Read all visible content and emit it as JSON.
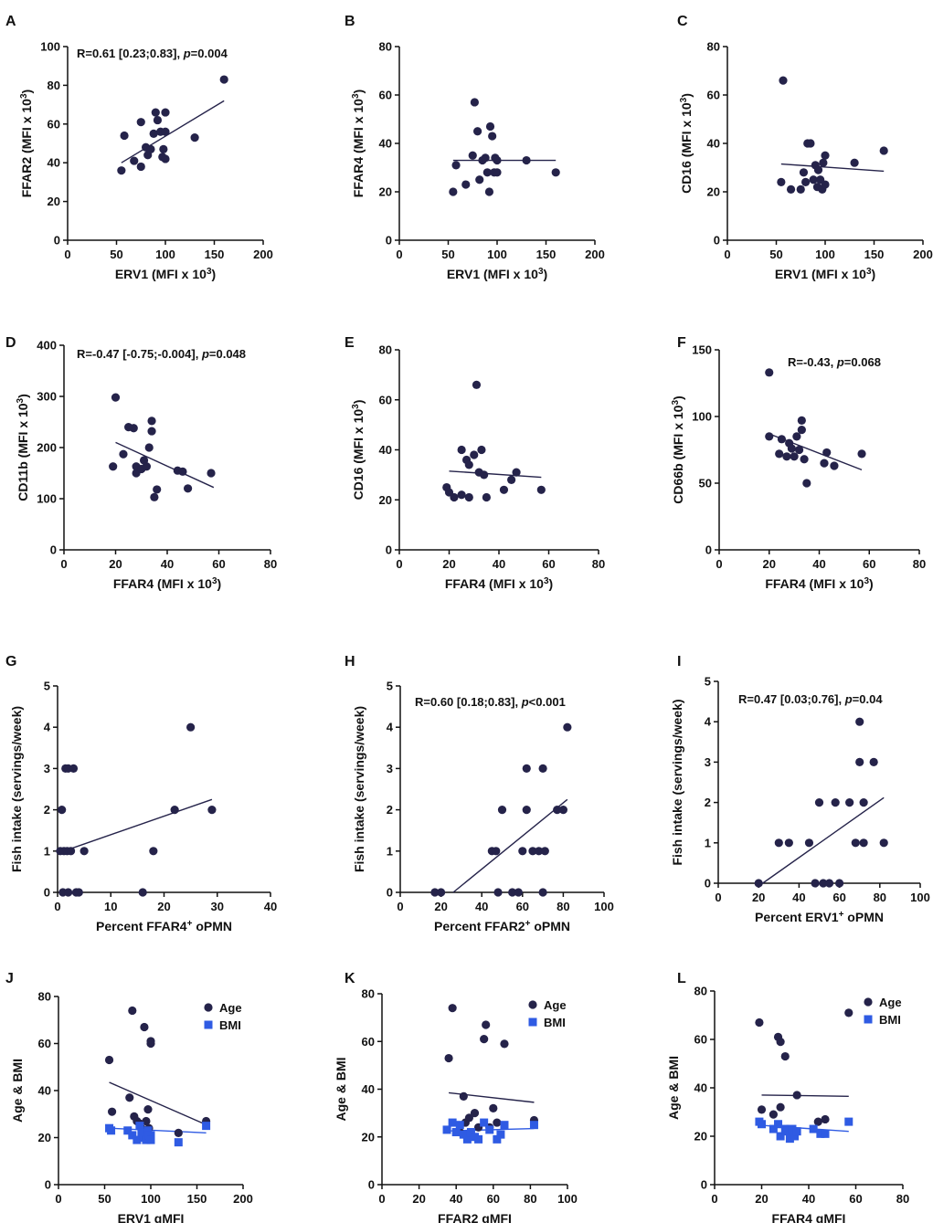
{
  "colors": {
    "navy": "#25234a",
    "blue": "#2f5be3",
    "axis": "#111111"
  },
  "chart_data": [
    {
      "panel": "A",
      "type": "scatter",
      "title": "",
      "xlabel_main": "ERV1 (MFI x 10",
      "xlabel_sup": "3",
      "xlabel_end": ")",
      "ylabel_main": "FFAR2 (MFI x 10",
      "ylabel_sup": "3",
      "ylabel_end": ")",
      "xlim": [
        0,
        200
      ],
      "xticks": [
        0,
        50,
        100,
        150,
        200
      ],
      "ylim": [
        0,
        100
      ],
      "yticks": [
        0,
        20,
        40,
        60,
        80,
        100
      ],
      "annotation": {
        "pre": "R=0.61 [0.23;0.83], ",
        "p": "p",
        "post": "=0.004"
      },
      "series": [
        {
          "name": "",
          "x": [
            55,
            58,
            68,
            75,
            75,
            80,
            82,
            85,
            88,
            90,
            92,
            95,
            97,
            98,
            100,
            100,
            100,
            130,
            160
          ],
          "y": [
            36,
            54,
            41,
            38,
            61,
            48,
            44,
            47,
            55,
            66,
            62,
            56,
            43,
            47,
            42,
            56,
            66,
            53,
            83
          ]
        }
      ],
      "fit": {
        "x": [
          55,
          160
        ],
        "y": [
          40,
          72
        ]
      }
    },
    {
      "panel": "B",
      "type": "scatter",
      "title": "",
      "xlabel_main": "ERV1 (MFI x 10",
      "xlabel_sup": "3",
      "xlabel_end": ")",
      "ylabel_main": "FFAR4 (MFI x 10",
      "ylabel_sup": "3",
      "ylabel_end": ")",
      "xlim": [
        0,
        200
      ],
      "xticks": [
        0,
        50,
        100,
        150,
        200
      ],
      "ylim": [
        0,
        80
      ],
      "yticks": [
        0,
        20,
        40,
        60,
        80
      ],
      "annotation": null,
      "series": [
        {
          "name": "",
          "x": [
            55,
            58,
            68,
            75,
            77,
            80,
            82,
            85,
            88,
            90,
            92,
            93,
            95,
            97,
            98,
            100,
            100,
            130,
            160
          ],
          "y": [
            20,
            31,
            23,
            35,
            57,
            45,
            25,
            33,
            34,
            28,
            20,
            47,
            43,
            28,
            34,
            33,
            28,
            33,
            28
          ]
        }
      ],
      "fit": {
        "x": [
          55,
          160
        ],
        "y": [
          33,
          33
        ]
      }
    },
    {
      "panel": "C",
      "type": "scatter",
      "title": "",
      "xlabel_main": "ERV1 (MFI x 10",
      "xlabel_sup": "3",
      "xlabel_end": ")",
      "ylabel_main": "CD16 (MFI x 10",
      "ylabel_sup": "3",
      "ylabel_end": ")",
      "xlim": [
        0,
        200
      ],
      "xticks": [
        0,
        50,
        100,
        150,
        200
      ],
      "ylim": [
        0,
        80
      ],
      "yticks": [
        0,
        20,
        40,
        60,
        80
      ],
      "annotation": null,
      "series": [
        {
          "name": "",
          "x": [
            55,
            57,
            65,
            75,
            78,
            80,
            82,
            85,
            88,
            90,
            92,
            93,
            95,
            97,
            98,
            100,
            100,
            130,
            160
          ],
          "y": [
            24,
            66,
            21,
            21,
            28,
            24,
            40,
            40,
            25,
            31,
            22,
            29,
            25,
            21,
            32,
            35,
            23,
            32,
            37
          ]
        }
      ],
      "fit": {
        "x": [
          55,
          160
        ],
        "y": [
          31.5,
          28.5
        ]
      }
    },
    {
      "panel": "D",
      "type": "scatter",
      "title": "",
      "xlabel_main": "FFAR4 (MFI x 10",
      "xlabel_sup": "3",
      "xlabel_end": ")",
      "ylabel_main": "CD11b (MFI x 10",
      "ylabel_sup": "3",
      "ylabel_end": ")",
      "xlim": [
        0,
        80
      ],
      "xticks": [
        0,
        20,
        40,
        60,
        80
      ],
      "ylim": [
        0,
        400
      ],
      "yticks": [
        0,
        100,
        200,
        300,
        400
      ],
      "annotation": {
        "pre": "R=-0.47 [-0.75;-0.004], ",
        "p": "p",
        "post": "=0.048"
      },
      "series": [
        {
          "name": "",
          "x": [
            19,
            20,
            23,
            25,
            27,
            28,
            28,
            30,
            31,
            32,
            33,
            34,
            34,
            35,
            36,
            44,
            46,
            48,
            57
          ],
          "y": [
            163,
            298,
            187,
            240,
            238,
            163,
            150,
            158,
            175,
            163,
            200,
            252,
            232,
            103,
            118,
            155,
            153,
            120,
            150
          ]
        }
      ],
      "fit": {
        "x": [
          20,
          58
        ],
        "y": [
          210,
          122
        ]
      }
    },
    {
      "panel": "E",
      "type": "scatter",
      "title": "",
      "xlabel_main": "FFAR4 (MFI x 10",
      "xlabel_sup": "3",
      "xlabel_end": ")",
      "ylabel_main": "CD16 (MFI x 10",
      "ylabel_sup": "3",
      "ylabel_end": ")",
      "xlim": [
        0,
        80
      ],
      "xticks": [
        0,
        20,
        40,
        60,
        80
      ],
      "ylim": [
        0,
        80
      ],
      "yticks": [
        0,
        20,
        40,
        60,
        80
      ],
      "annotation": null,
      "series": [
        {
          "name": "",
          "x": [
            19,
            20,
            22,
            25,
            25,
            27,
            28,
            28,
            30,
            31,
            32,
            33,
            34,
            35,
            42,
            45,
            47,
            57
          ],
          "y": [
            25,
            23,
            21,
            40,
            22,
            36,
            34,
            21,
            38,
            66,
            31,
            40,
            30,
            21,
            24,
            28,
            31,
            24
          ]
        }
      ],
      "fit": {
        "x": [
          20,
          57
        ],
        "y": [
          31.5,
          29
        ]
      }
    },
    {
      "panel": "F",
      "type": "scatter",
      "title": "",
      "xlabel_main": "FFAR4 (MFI x 10",
      "xlabel_sup": "3",
      "xlabel_end": ")",
      "ylabel_main": "CD66b (MFI x 10",
      "ylabel_sup": "3",
      "ylabel_end": ")",
      "xlim": [
        0,
        80
      ],
      "xticks": [
        0,
        20,
        40,
        60,
        80
      ],
      "ylim": [
        0,
        150
      ],
      "yticks": [
        0,
        50,
        100,
        150
      ],
      "annotation": {
        "pre": "R=-0.43, ",
        "p": "p",
        "post": "=0.068"
      },
      "series": [
        {
          "name": "",
          "x": [
            20,
            20,
            24,
            25,
            27,
            28,
            29,
            30,
            31,
            32,
            33,
            33,
            34,
            35,
            42,
            43,
            46,
            57
          ],
          "y": [
            133,
            85,
            72,
            83,
            70,
            80,
            76,
            70,
            85,
            75,
            97,
            90,
            68,
            50,
            65,
            73,
            63,
            72
          ]
        }
      ],
      "fit": {
        "x": [
          20,
          57
        ],
        "y": [
          87,
          60
        ]
      }
    },
    {
      "panel": "G",
      "type": "scatter",
      "title": "",
      "xlabel_main": "Percent FFAR4",
      "xlabel_sup": "+",
      "xlabel_end": " oPMN",
      "ylabel_main": "Fish intake (servings/week)",
      "ylabel_sup": "",
      "ylabel_end": "",
      "xlim": [
        0,
        40
      ],
      "xticks": [
        0,
        10,
        20,
        30,
        40
      ],
      "ylim": [
        0,
        5
      ],
      "yticks": [
        0,
        1,
        2,
        3,
        4,
        5
      ],
      "annotation": null,
      "series": [
        {
          "name": "",
          "x": [
            0.5,
            0.8,
            1,
            1.2,
            1.5,
            1.8,
            2,
            2,
            2.5,
            3,
            3.5,
            4,
            5,
            16,
            18,
            22,
            25,
            29
          ],
          "y": [
            1,
            2,
            0,
            1,
            3,
            1,
            3,
            0,
            1,
            3,
            0,
            0,
            1,
            0,
            1,
            2,
            4,
            2
          ]
        }
      ],
      "fit": {
        "x": [
          0.5,
          29
        ],
        "y": [
          0.97,
          2.25
        ]
      }
    },
    {
      "panel": "H",
      "type": "scatter",
      "title": "",
      "xlabel_main": "Percent FFAR2",
      "xlabel_sup": "+",
      "xlabel_end": " oPMN",
      "ylabel_main": "Fish intake (servings/week)",
      "ylabel_sup": "",
      "ylabel_end": "",
      "xlim": [
        0,
        100
      ],
      "xticks": [
        0,
        20,
        40,
        60,
        80,
        100
      ],
      "ylim": [
        0,
        5
      ],
      "yticks": [
        0,
        1,
        2,
        3,
        4,
        5
      ],
      "annotation": {
        "pre": "R=0.60 [0.18;0.83], ",
        "p": "p",
        "post": "<0.001"
      },
      "series": [
        {
          "name": "",
          "x": [
            17,
            20,
            45,
            47,
            48,
            50,
            55,
            58,
            60,
            62,
            62,
            65,
            68,
            70,
            70,
            71,
            77,
            80,
            82
          ],
          "y": [
            0,
            0,
            1,
            1,
            0,
            2,
            0,
            0,
            1,
            3,
            2,
            1,
            1,
            0,
            3,
            1,
            2,
            2,
            4
          ]
        }
      ],
      "fit": {
        "x": [
          26,
          82
        ],
        "y": [
          0,
          2.25
        ]
      }
    },
    {
      "panel": "I",
      "type": "scatter",
      "title": "",
      "xlabel_main": "Percent ERV1",
      "xlabel_sup": "+",
      "xlabel_end": " oPMN",
      "ylabel_main": "Fish intake (servings/week)",
      "ylabel_sup": "",
      "ylabel_end": "",
      "xlim": [
        0,
        100
      ],
      "xticks": [
        0,
        20,
        40,
        60,
        80,
        100
      ],
      "ylim": [
        0,
        5
      ],
      "yticks": [
        0,
        1,
        2,
        3,
        4,
        5
      ],
      "annotation": {
        "pre": "R=0.47 [0.03;0.76], ",
        "p": "p",
        "post": "=0.04"
      },
      "series": [
        {
          "name": "",
          "x": [
            20,
            30,
            35,
            45,
            48,
            50,
            52,
            55,
            58,
            60,
            65,
            68,
            70,
            70,
            72,
            72,
            77,
            82
          ],
          "y": [
            0,
            1,
            1,
            1,
            0,
            2,
            0,
            0,
            2,
            0,
            2,
            1,
            4,
            3,
            1,
            2,
            3,
            1
          ]
        }
      ],
      "fit": {
        "x": [
          22,
          82
        ],
        "y": [
          0,
          2.12
        ]
      }
    },
    {
      "panel": "J",
      "type": "scatter",
      "title": "",
      "xlabel_main": "ERV1 gMFI",
      "xlabel_sup": "",
      "xlabel_end": "",
      "ylabel_main": "Age & BMI",
      "ylabel_sup": "",
      "ylabel_end": "",
      "xlim": [
        0,
        200
      ],
      "xticks": [
        0,
        50,
        100,
        150,
        200
      ],
      "ylim": [
        0,
        80
      ],
      "yticks": [
        0,
        20,
        40,
        60,
        80
      ],
      "annotation": null,
      "legend": [
        "Age",
        "BMI"
      ],
      "series": [
        {
          "name": "Age",
          "x": [
            55,
            58,
            77,
            80,
            82,
            85,
            88,
            90,
            92,
            93,
            95,
            95,
            97,
            98,
            100,
            100,
            130,
            160
          ],
          "y": [
            53,
            31,
            37,
            74,
            29,
            27,
            26,
            24,
            21,
            67,
            27,
            20,
            32,
            24,
            61,
            60,
            22,
            27
          ]
        },
        {
          "name": "BMI",
          "x": [
            55,
            57,
            75,
            80,
            85,
            88,
            90,
            92,
            95,
            97,
            98,
            100,
            100,
            130,
            160
          ],
          "y": [
            24,
            23,
            23,
            21,
            19,
            25,
            22,
            20,
            19,
            23,
            21,
            21,
            19,
            18,
            25
          ]
        }
      ],
      "fits": [
        {
          "x": [
            55,
            160
          ],
          "y": [
            43.5,
            25.5
          ]
        },
        {
          "x": [
            55,
            160
          ],
          "y": [
            24,
            22
          ]
        }
      ]
    },
    {
      "panel": "K",
      "type": "scatter",
      "title": "",
      "xlabel_main": "FFAR2 gMFI",
      "xlabel_sup": "",
      "xlabel_end": "",
      "ylabel_main": "Age & BMI",
      "ylabel_sup": "",
      "ylabel_end": "",
      "xlim": [
        0,
        100
      ],
      "xticks": [
        0,
        20,
        40,
        60,
        80,
        100
      ],
      "ylim": [
        0,
        80
      ],
      "yticks": [
        0,
        20,
        40,
        60,
        80
      ],
      "annotation": null,
      "legend": [
        "Age",
        "BMI"
      ],
      "series": [
        {
          "name": "Age",
          "x": [
            36,
            38,
            42,
            44,
            45,
            47,
            48,
            50,
            52,
            55,
            56,
            58,
            60,
            62,
            66,
            82
          ],
          "y": [
            53,
            74,
            22,
            37,
            26,
            28,
            21,
            30,
            24,
            61,
            67,
            24,
            32,
            26,
            59,
            27
          ]
        },
        {
          "name": "BMI",
          "x": [
            35,
            38,
            40,
            42,
            44,
            46,
            48,
            50,
            52,
            55,
            58,
            62,
            64,
            66,
            82
          ],
          "y": [
            23,
            26,
            22,
            25,
            21,
            19,
            22,
            20,
            19,
            26,
            23,
            19,
            21,
            25,
            25
          ]
        }
      ],
      "fits": [
        {
          "x": [
            36,
            82
          ],
          "y": [
            38.5,
            34.5
          ]
        },
        {
          "x": [
            36,
            82
          ],
          "y": [
            22.5,
            23.5
          ]
        }
      ]
    },
    {
      "panel": "L",
      "type": "scatter",
      "title": "",
      "xlabel_main": "FFAR4 gMFI",
      "xlabel_sup": "",
      "xlabel_end": "",
      "ylabel_main": "Age & BMI",
      "ylabel_sup": "",
      "ylabel_end": "",
      "xlim": [
        0,
        80
      ],
      "xticks": [
        0,
        20,
        40,
        60,
        80
      ],
      "ylim": [
        0,
        80
      ],
      "yticks": [
        0,
        20,
        40,
        60,
        80
      ],
      "annotation": null,
      "legend": [
        "Age",
        "BMI"
      ],
      "series": [
        {
          "name": "Age",
          "x": [
            19,
            20,
            25,
            27,
            28,
            28,
            30,
            31,
            32,
            33,
            33,
            35,
            44,
            47,
            57
          ],
          "y": [
            67,
            31,
            29,
            61,
            59,
            32,
            53,
            23,
            22,
            21,
            20,
            37,
            26,
            27,
            71
          ]
        },
        {
          "name": "BMI",
          "x": [
            19,
            20,
            25,
            27,
            28,
            30,
            31,
            32,
            33,
            34,
            35,
            42,
            45,
            47,
            57
          ],
          "y": [
            26,
            25,
            23,
            25,
            20,
            23,
            22,
            19,
            23,
            20,
            22,
            23,
            21,
            21,
            26
          ]
        }
      ],
      "fits": [
        {
          "x": [
            20,
            57
          ],
          "y": [
            37,
            36.5
          ]
        },
        {
          "x": [
            20,
            57
          ],
          "y": [
            24.5,
            22
          ]
        }
      ]
    }
  ]
}
